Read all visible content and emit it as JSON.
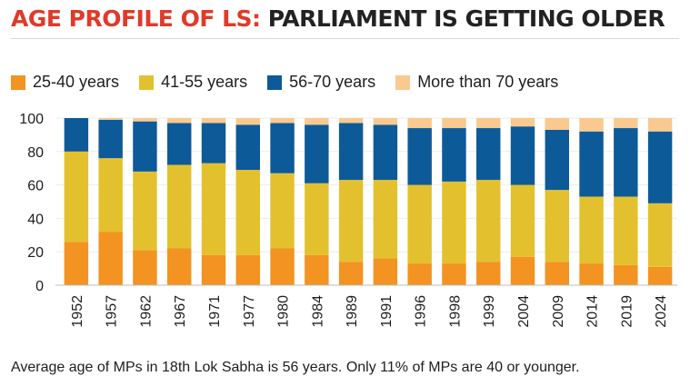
{
  "title": {
    "part1": "AGE PROFILE OF LS:",
    "part2": "PARLIAMENT IS GETTING OLDER"
  },
  "legend": [
    {
      "label": "25-40 years",
      "color": "#f39321"
    },
    {
      "label": "41-55 years",
      "color": "#e3c12e"
    },
    {
      "label": "56-70 years",
      "color": "#0d5a99"
    },
    {
      "label": "More than 70 years",
      "color": "#f9c98f"
    }
  ],
  "chart_data": {
    "type": "bar",
    "stacked": true,
    "title": "AGE PROFILE OF LS: PARLIAMENT IS GETTING OLDER",
    "categories": [
      "1952",
      "1957",
      "1962",
      "1967",
      "1971",
      "1977",
      "1980",
      "1984",
      "1989",
      "1991",
      "1996",
      "1998",
      "1999",
      "2004",
      "2009",
      "2014",
      "2019",
      "2024"
    ],
    "series": [
      {
        "name": "25-40 years",
        "values": [
          26,
          32,
          21,
          22,
          18,
          18,
          22,
          18,
          14,
          16,
          13,
          13,
          14,
          17,
          14,
          13,
          12,
          11
        ]
      },
      {
        "name": "41-55 years",
        "values": [
          54,
          44,
          47,
          50,
          55,
          51,
          45,
          43,
          49,
          47,
          47,
          49,
          49,
          43,
          43,
          40,
          41,
          38
        ]
      },
      {
        "name": "56-70 years",
        "values": [
          20,
          23,
          30,
          25,
          24,
          27,
          30,
          35,
          34,
          33,
          34,
          32,
          31,
          35,
          36,
          39,
          41,
          43
        ]
      },
      {
        "name": "More than 70 years",
        "values": [
          0,
          1,
          2,
          3,
          3,
          4,
          3,
          4,
          3,
          4,
          6,
          6,
          6,
          5,
          7,
          8,
          6,
          8
        ]
      }
    ],
    "ylim": [
      0,
      100
    ],
    "yticks": [
      0,
      20,
      40,
      60,
      80,
      100
    ],
    "xlabel": "",
    "ylabel": ""
  },
  "footnote": "Average age of MPs in 18th Lok Sabha is 56 years. Only 11% of MPs are 40 or younger."
}
